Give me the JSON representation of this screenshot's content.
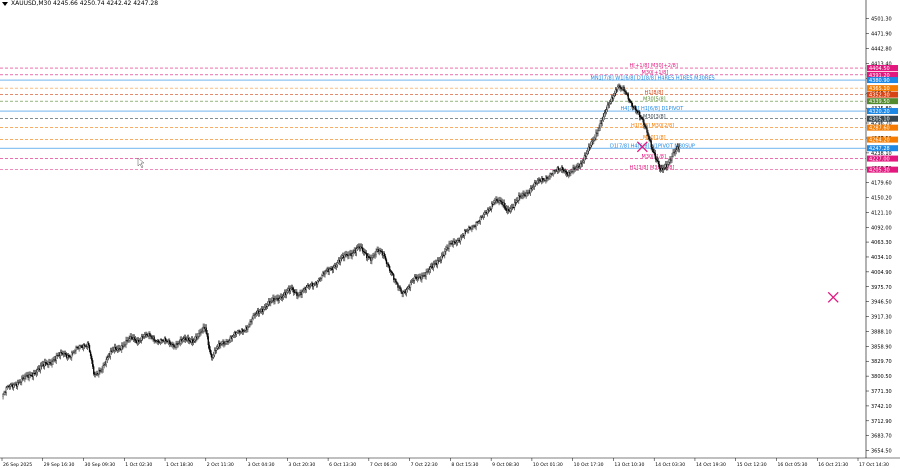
{
  "header": {
    "title": "XAUUSD,M30  4245.66 4250.74 4242.42 4247.28"
  },
  "chart_data": {
    "type": "candlestick",
    "symbol": "XAUUSD",
    "timeframe": "M30",
    "ohlc_current": {
      "open": 4245.66,
      "high": 4250.74,
      "low": 4242.42,
      "close": 4247.28
    },
    "ylim": [
      3640,
      4530
    ],
    "y_ticks": [
      "4501.30",
      "4471.90",
      "4442.80",
      "4413.40",
      "4384.30",
      "4355.20",
      "4325.80",
      "4296.70",
      "4267.30",
      "4238.10",
      "4208.70",
      "4179.60",
      "4150.20",
      "4121.10",
      "4092.00",
      "4063.30",
      "4034.10",
      "4004.90",
      "3975.70",
      "3946.50",
      "3917.30",
      "3888.10",
      "3858.90",
      "3829.70",
      "3800.50",
      "3771.30",
      "3742.10",
      "3712.90",
      "3683.70",
      "3654.50"
    ],
    "x_ticks": [
      "26 Sep 2025",
      "29 Sep 16:30",
      "30 Sep 09:30",
      "1 Oct 02:30",
      "1 Oct 18:30",
      "2 Oct 11:30",
      "3 Oct 04:30",
      "3 Oct 20:30",
      "6 Oct 13:30",
      "7 Oct 06:30",
      "7 Oct 22:30",
      "8 Oct 15:30",
      "9 Oct 08:30",
      "10 Oct 01:30",
      "10 Oct 17:30",
      "13 Oct 10:30",
      "14 Oct 03:30",
      "14 Oct 19:30",
      "15 Oct 12:30",
      "16 Oct 05:30",
      "16 Oct 21:30",
      "17 Oct 14:30"
    ],
    "close_path": [
      [
        0,
        3760
      ],
      [
        1,
        3779
      ],
      [
        2,
        3786
      ],
      [
        3,
        3790
      ],
      [
        4,
        3799
      ],
      [
        5,
        3806
      ],
      [
        6,
        3813
      ],
      [
        7,
        3824
      ],
      [
        8,
        3830
      ],
      [
        9,
        3838
      ],
      [
        10,
        3845
      ],
      [
        11,
        3841
      ],
      [
        12,
        3852
      ],
      [
        13,
        3860
      ],
      [
        14,
        3866
      ],
      [
        15,
        3798
      ],
      [
        16,
        3812
      ],
      [
        17,
        3835
      ],
      [
        18,
        3850
      ],
      [
        19,
        3855
      ],
      [
        20,
        3866
      ],
      [
        21,
        3874
      ],
      [
        22,
        3870
      ],
      [
        23,
        3880
      ],
      [
        24,
        3878
      ],
      [
        25,
        3872
      ],
      [
        26,
        3870
      ],
      [
        27,
        3866
      ],
      [
        28,
        3862
      ],
      [
        29,
        3868
      ],
      [
        30,
        3872
      ],
      [
        31,
        3871
      ],
      [
        32,
        3880
      ],
      [
        33,
        3896
      ],
      [
        34,
        3838
      ],
      [
        35,
        3856
      ],
      [
        36,
        3866
      ],
      [
        37,
        3875
      ],
      [
        38,
        3883
      ],
      [
        39,
        3890
      ],
      [
        40,
        3900
      ],
      [
        41,
        3918
      ],
      [
        42,
        3930
      ],
      [
        43,
        3940
      ],
      [
        44,
        3947
      ],
      [
        45,
        3955
      ],
      [
        46,
        3962
      ],
      [
        47,
        3970
      ],
      [
        48,
        3962
      ],
      [
        49,
        3968
      ],
      [
        50,
        3977
      ],
      [
        51,
        3986
      ],
      [
        52,
        3997
      ],
      [
        53,
        4008
      ],
      [
        54,
        4018
      ],
      [
        55,
        4028
      ],
      [
        56,
        4038
      ],
      [
        57,
        4044
      ],
      [
        58,
        4052
      ],
      [
        59,
        4040
      ],
      [
        60,
        4032
      ],
      [
        61,
        4045
      ],
      [
        62,
        4040
      ],
      [
        63,
        4010
      ],
      [
        64,
        3980
      ],
      [
        65,
        3965
      ],
      [
        66,
        3975
      ],
      [
        67,
        3990
      ],
      [
        68,
        3997
      ],
      [
        69,
        4003
      ],
      [
        70,
        4015
      ],
      [
        71,
        4030
      ],
      [
        72,
        4045
      ],
      [
        73,
        4060
      ],
      [
        74,
        4068
      ],
      [
        75,
        4078
      ],
      [
        76,
        4090
      ],
      [
        77,
        4102
      ],
      [
        78,
        4112
      ],
      [
        79,
        4125
      ],
      [
        80,
        4148
      ],
      [
        81,
        4140
      ],
      [
        82,
        4125
      ],
      [
        83,
        4135
      ],
      [
        84,
        4148
      ],
      [
        85,
        4158
      ],
      [
        86,
        4170
      ],
      [
        87,
        4180
      ],
      [
        88,
        4188
      ],
      [
        89,
        4195
      ],
      [
        90,
        4202
      ],
      [
        91,
        4210
      ],
      [
        92,
        4195
      ],
      [
        93,
        4205
      ],
      [
        94,
        4218
      ],
      [
        95,
        4238
      ],
      [
        96,
        4260
      ],
      [
        97,
        4292
      ],
      [
        98,
        4318
      ],
      [
        99,
        4342
      ],
      [
        100,
        4372
      ],
      [
        101,
        4360
      ],
      [
        102,
        4338
      ],
      [
        103,
        4325
      ],
      [
        104,
        4300
      ],
      [
        105,
        4270
      ],
      [
        106,
        4235
      ],
      [
        107,
        4200
      ],
      [
        108,
        4215
      ],
      [
        109,
        4238
      ],
      [
        110,
        4247
      ]
    ],
    "levels": [
      {
        "value": 4404.5,
        "color": "#e2187f",
        "style": "dashed",
        "label": "H[+1/8] M30[+2/8]",
        "price": "4404.50"
      },
      {
        "value": 4391.2,
        "color": "#e2187f",
        "style": "dashed",
        "label": "M30[+1/8]",
        "price": "4391.20"
      },
      {
        "value": 4380.9,
        "color": "#1e88e5",
        "style": "solid",
        "label": "MN1[7/8] W1[6/8] D1[8/8] H4RES H1RES M30RES",
        "price": "4380.90"
      },
      {
        "value": 4365.1,
        "color": "#f57c00",
        "style": "dashed",
        "label": "",
        "price": "4365.10"
      },
      {
        "value": 4352.3,
        "color": "#d84315",
        "style": "dashed",
        "label": "H1[8/8]",
        "price": "4352.30"
      },
      {
        "value": 4339.5,
        "color": "#558b2f",
        "style": "dashed",
        "label": "M30[5/8]",
        "price": "4339.50"
      },
      {
        "value": 4320.2,
        "color": "#1e88e5",
        "style": "solid",
        "label": "H4[7/8] H1[6/8] D1PIVOT",
        "price": "4320.20"
      },
      {
        "value": 4305.1,
        "color": "#37474f",
        "style": "dashed",
        "label": "M30[3/8]",
        "price": "4305.10"
      },
      {
        "value": 4287.6,
        "color": "#f57c00",
        "style": "dashed",
        "label": "H1[5/8] M30[2/8]",
        "price": "4287.60"
      },
      {
        "value": 4264.2,
        "color": "#f57c00",
        "style": "dashed",
        "label": "M30[1/8]",
        "price": "4264.20"
      },
      {
        "value": 4247.3,
        "color": "#1e88e5",
        "style": "solid",
        "label": "D1[7/8] H4[6/8] H1PIVOT M30SUP",
        "price": "4247.28"
      },
      {
        "value": 4227.0,
        "color": "#e2187f",
        "style": "dashed",
        "label": "M30[-1/8]",
        "price": "4227.00"
      },
      {
        "value": 4205.3,
        "color": "#e2187f",
        "style": "dashed",
        "label": "H1[3/8] M30[-2/8]",
        "price": "4205.30"
      }
    ],
    "markers": [
      {
        "type": "cross",
        "color": "#e2187f",
        "x_index": 104,
        "y": 4250
      },
      {
        "type": "cross",
        "color": "#e2187f",
        "x_index": 135,
        "y": 3955
      }
    ],
    "current_price": 4247.28,
    "grid": false
  }
}
